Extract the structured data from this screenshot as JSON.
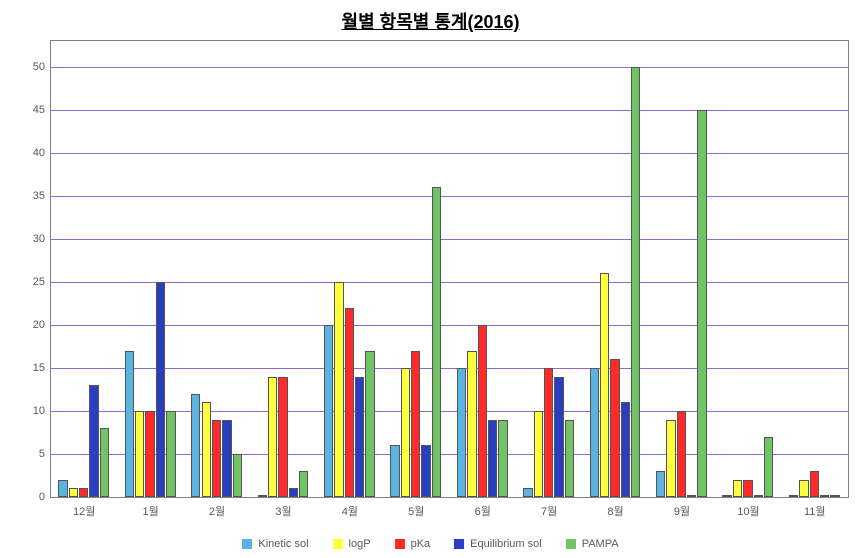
{
  "chart": {
    "type": "bar",
    "title": "월별 항목별 통계(2016)",
    "title_fontsize": 18,
    "background_color": "#ffffff",
    "plot_border_color": "#808080",
    "grid_color": "#9966cc",
    "y": {
      "min": 0,
      "max": 53,
      "ticks": [
        0,
        5,
        10,
        15,
        20,
        25,
        30,
        35,
        40,
        45,
        50
      ]
    },
    "categories": [
      "12월",
      "1월",
      "2월",
      "3월",
      "4월",
      "5월",
      "6월",
      "7월",
      "8월",
      "9월",
      "10월",
      "11월"
    ],
    "series": [
      {
        "name": "Kinetic sol",
        "color": "#5cb3e0",
        "values": [
          2,
          17,
          12,
          0,
          20,
          6,
          15,
          1,
          15,
          3,
          0,
          0
        ]
      },
      {
        "name": "logP",
        "color": "#ffff3d",
        "values": [
          1,
          10,
          11,
          14,
          25,
          15,
          17,
          10,
          26,
          9,
          2,
          2
        ]
      },
      {
        "name": "pKa",
        "color": "#ff2a2a",
        "values": [
          1,
          10,
          9,
          14,
          22,
          17,
          20,
          15,
          16,
          10,
          2,
          3
        ]
      },
      {
        "name": "Equilibrium sol",
        "color": "#2a3fbf",
        "values": [
          13,
          25,
          9,
          1,
          14,
          6,
          9,
          14,
          11,
          0,
          0,
          0
        ]
      },
      {
        "name": "PAMPA",
        "color": "#70c465",
        "values": [
          8,
          10,
          5,
          3,
          17,
          36,
          9,
          9,
          50,
          45,
          7,
          0
        ]
      }
    ],
    "label_fontsize": 11,
    "label_color": "#595959",
    "bar_border_color": "#555555",
    "bar_border_width": 0.5
  }
}
